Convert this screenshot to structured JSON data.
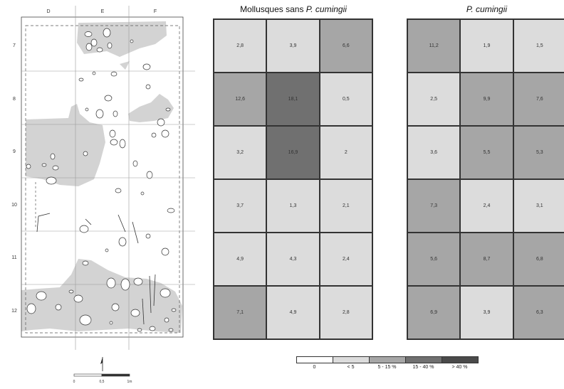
{
  "plan": {
    "columns": [
      "D",
      "E",
      "F"
    ],
    "rows": [
      "7",
      "8",
      "9",
      "10",
      "11",
      "12"
    ],
    "scale_labels": [
      "0",
      "0,5",
      "1m"
    ]
  },
  "heatmap_left": {
    "title_prefix": "Mollusques sans ",
    "title_italic": "P. cumingii"
  },
  "heatmap_right": {
    "title_italic": "P. cumingii"
  },
  "chart_data": [
    {
      "type": "heatmap",
      "title": "Mollusques sans P. cumingii",
      "rows": [
        "7",
        "8",
        "9",
        "10",
        "11",
        "12"
      ],
      "columns": [
        "D",
        "E",
        "F"
      ],
      "values": [
        [
          "2,8",
          "3,9",
          "6,6"
        ],
        [
          "12,6",
          "18,1",
          "0,5"
        ],
        [
          "3,2",
          "16,9",
          "2"
        ],
        [
          "3,7",
          "1,3",
          "2,1"
        ],
        [
          "4,9",
          "4,3",
          "2,4"
        ],
        [
          "7,1",
          "4,9",
          "2,8"
        ]
      ]
    },
    {
      "type": "heatmap",
      "title": "P. cumingii",
      "rows": [
        "7",
        "8",
        "9",
        "10",
        "11",
        "12"
      ],
      "columns": [
        "D",
        "E",
        "F"
      ],
      "values": [
        [
          "11,2",
          "1,9",
          "1,5"
        ],
        [
          "2,5",
          "9,9",
          "7,6"
        ],
        [
          "3,6",
          "5,5",
          "5,3"
        ],
        [
          "7,3",
          "2,4",
          "3,1"
        ],
        [
          "5,6",
          "8,7",
          "6,8"
        ],
        [
          "6,9",
          "3,9",
          "6,3"
        ]
      ]
    }
  ],
  "legend": {
    "classes": [
      {
        "label": "0",
        "color": "#ffffff",
        "max": 0
      },
      {
        "label": "< 5",
        "color": "#dcdcdc",
        "max": 5
      },
      {
        "label": "5 - 15 %",
        "color": "#a6a6a6",
        "max": 15
      },
      {
        "label": "15 - 40 %",
        "color": "#707070",
        "max": 40
      },
      {
        "label": "> 40 %",
        "color": "#4a4a4a",
        "max": 100
      }
    ]
  }
}
